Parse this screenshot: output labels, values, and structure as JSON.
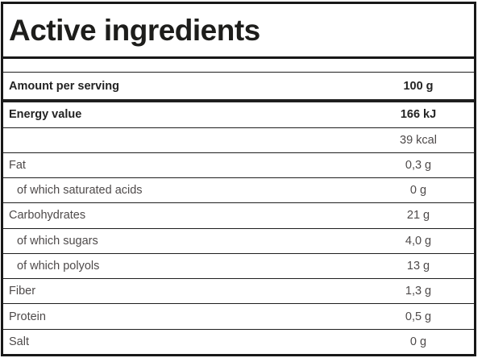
{
  "title": "Active ingredients",
  "colors": {
    "border": "#181818",
    "title_text": "#1d1d1b",
    "bold_text": "#232323",
    "regular_text": "#4e4a4a",
    "background": "#ffffff"
  },
  "table": {
    "columns": [
      "ingredient",
      "amount"
    ],
    "rows": [
      {
        "label": "Amount per serving",
        "value": "100 g",
        "style": "header"
      },
      {
        "label": "Energy value",
        "value": "166 kJ",
        "style": "bold"
      },
      {
        "label": "",
        "value": "39 kcal",
        "style": "regular"
      },
      {
        "label": "Fat",
        "value": "0,3 g",
        "style": "regular"
      },
      {
        "label": "of which saturated acids",
        "value": "0 g",
        "style": "sub"
      },
      {
        "label": "Carbohydrates",
        "value": "21 g",
        "style": "regular"
      },
      {
        "label": "of which sugars",
        "value": "4,0 g",
        "style": "sub"
      },
      {
        "label": "of which polyols",
        "value": "13 g",
        "style": "sub"
      },
      {
        "label": "Fiber",
        "value": "1,3 g",
        "style": "regular"
      },
      {
        "label": "Protein",
        "value": "0,5 g",
        "style": "regular"
      },
      {
        "label": "Salt",
        "value": "0 g",
        "style": "regular"
      }
    ]
  }
}
